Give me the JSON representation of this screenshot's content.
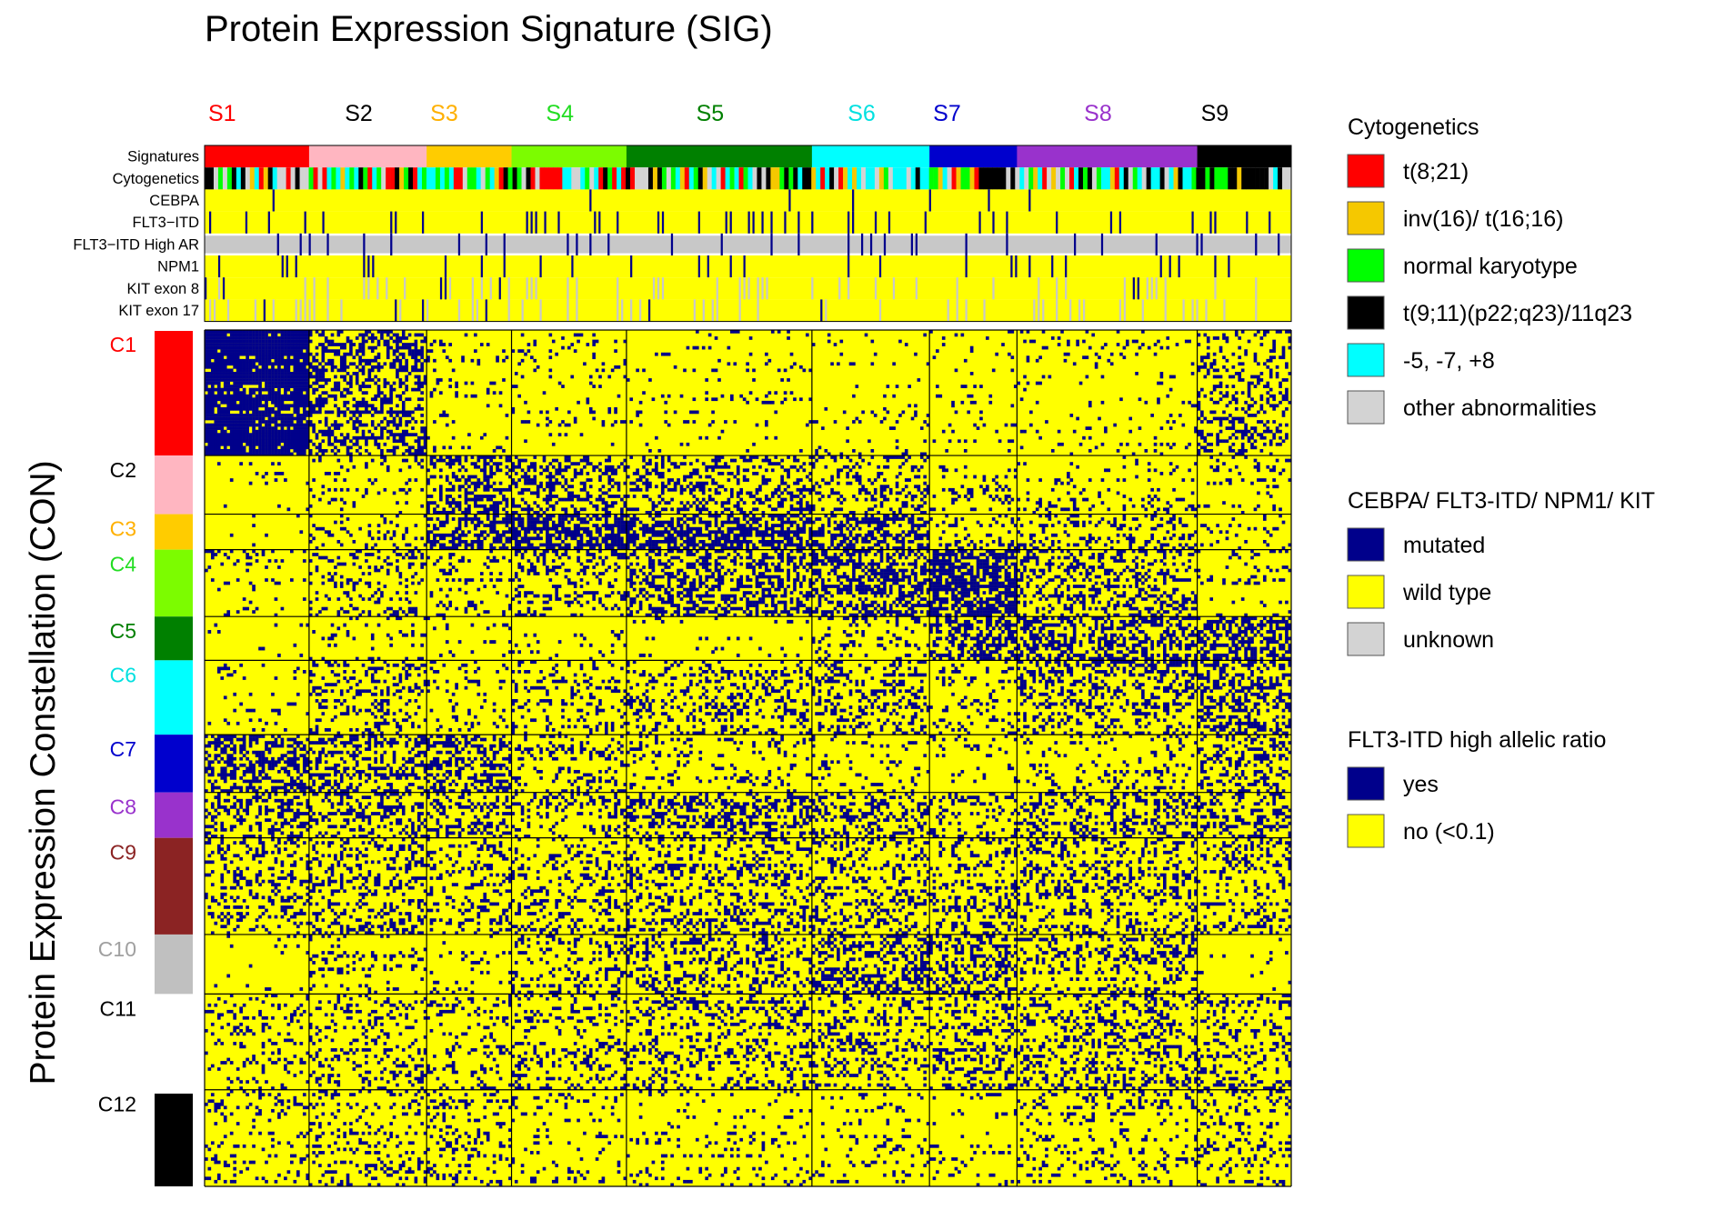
{
  "chart_data": {
    "type": "heatmap",
    "title": "Protein Expression Signature (SIG)",
    "ylabel": "Protein Expression Constellation (CON)",
    "signatures": [
      {
        "label": "S1",
        "color": "#ff0000",
        "weight": 8
      },
      {
        "label": "S2",
        "color": "#ffb6c1",
        "weight": 9
      },
      {
        "label": "S3",
        "color": "#ffcc00",
        "weight": 6.5
      },
      {
        "label": "S4",
        "color": "#7cfc00",
        "weight": 8.8
      },
      {
        "label": "S5",
        "color": "#008000",
        "weight": 14.2
      },
      {
        "label": "S6",
        "color": "#00ffff",
        "weight": 9
      },
      {
        "label": "S7",
        "color": "#0000cd",
        "weight": 6.7
      },
      {
        "label": "S8",
        "color": "#9932cc",
        "weight": 13.8
      },
      {
        "label": "S9",
        "color": "#000000",
        "weight": 7.2
      }
    ],
    "signature_label_colors": [
      "#ff0000",
      "#000000",
      "#ffb000",
      "#22dd22",
      "#008000",
      "#00e0e0",
      "#0000cd",
      "#9932cc",
      "#000000"
    ],
    "annotation_rows": [
      "Signatures",
      "Cytogenetics",
      "CEBPA",
      "FLT3−ITD",
      "FLT3−ITD High AR",
      "NPM1",
      "KIT exon 8",
      "KIT exon 17"
    ],
    "constellations": [
      {
        "label": "C1",
        "color": "#ff0000",
        "label_color": "#ff0000",
        "weight": 15.2,
        "show_bar": true
      },
      {
        "label": "C2",
        "color": "#ffb6c1",
        "label_color": "#000000",
        "weight": 7.1,
        "show_bar": true
      },
      {
        "label": "C3",
        "color": "#ffcc00",
        "label_color": "#ffb000",
        "weight": 4.3,
        "show_bar": true
      },
      {
        "label": "C4",
        "color": "#7cfc00",
        "label_color": "#22dd22",
        "weight": 8.1,
        "show_bar": true
      },
      {
        "label": "C5",
        "color": "#008000",
        "label_color": "#008000",
        "weight": 5.3,
        "show_bar": true
      },
      {
        "label": "C6",
        "color": "#00ffff",
        "label_color": "#00e0e0",
        "weight": 9,
        "show_bar": true
      },
      {
        "label": "C7",
        "color": "#0000cd",
        "label_color": "#0000cd",
        "weight": 7,
        "show_bar": true
      },
      {
        "label": "C8",
        "color": "#9932cc",
        "label_color": "#9932cc",
        "weight": 5.5,
        "show_bar": true
      },
      {
        "label": "C9",
        "color": "#8b2323",
        "label_color": "#8b2323",
        "weight": 11.7,
        "show_bar": true
      },
      {
        "label": "C10",
        "color": "#c0c0c0",
        "label_color": "#a0a0a0",
        "weight": 7.2,
        "show_bar": true
      },
      {
        "label": "C11",
        "color": "#ffffff",
        "label_color": "#000000",
        "weight": 11.6,
        "show_bar": false
      },
      {
        "label": "C12",
        "color": "#000000",
        "label_color": "#000000",
        "weight": 11.7,
        "show_bar": true
      }
    ],
    "cell_colors": {
      "high": "#00008b",
      "low": "#ffff00"
    },
    "density_matrix": [
      [
        0.92,
        0.45,
        0.08,
        0.07,
        0.04,
        0.05,
        0.05,
        0.08,
        0.28
      ],
      [
        0.0,
        0.12,
        0.45,
        0.4,
        0.35,
        0.25,
        0.1,
        0.12,
        0.1
      ],
      [
        0.0,
        0.1,
        0.55,
        0.6,
        0.65,
        0.5,
        0.2,
        0.2,
        0.12
      ],
      [
        0.08,
        0.2,
        0.15,
        0.25,
        0.45,
        0.5,
        0.7,
        0.3,
        0.1
      ],
      [
        0.0,
        0.1,
        0.05,
        0.05,
        0.05,
        0.15,
        0.45,
        0.45,
        0.5
      ],
      [
        0.05,
        0.25,
        0.15,
        0.2,
        0.25,
        0.25,
        0.15,
        0.3,
        0.45
      ],
      [
        0.45,
        0.4,
        0.45,
        0.2,
        0.15,
        0.1,
        0.05,
        0.15,
        0.35
      ],
      [
        0.4,
        0.35,
        0.35,
        0.3,
        0.35,
        0.35,
        0.2,
        0.35,
        0.35
      ],
      [
        0.25,
        0.3,
        0.2,
        0.25,
        0.3,
        0.25,
        0.25,
        0.25,
        0.25
      ],
      [
        0.05,
        0.15,
        0.05,
        0.25,
        0.3,
        0.45,
        0.35,
        0.2,
        0.02
      ],
      [
        0.15,
        0.2,
        0.15,
        0.2,
        0.25,
        0.25,
        0.3,
        0.3,
        0.25
      ],
      [
        0.12,
        0.18,
        0.15,
        0.1,
        0.08,
        0.1,
        0.1,
        0.12,
        0.18
      ]
    ]
  },
  "legend": {
    "groups": [
      {
        "title": "Cytogenetics",
        "items": [
          {
            "label": "t(8;21)",
            "color": "#ff0000"
          },
          {
            "label": "inv(16)/ t(16;16)",
            "color": "#f5c800"
          },
          {
            "label": "normal karyotype",
            "color": "#00ff00"
          },
          {
            "label": "t(9;11)(p22;q23)/11q23",
            "color": "#000000"
          },
          {
            "label": "-5, -7, +8",
            "color": "#00ffff"
          },
          {
            "label": "other abnormalities",
            "color": "#d3d3d3"
          }
        ]
      },
      {
        "title": "CEBPA/ FLT3-ITD/ NPM1/ KIT",
        "items": [
          {
            "label": "mutated",
            "color": "#00008b"
          },
          {
            "label": "wild type",
            "color": "#ffff00"
          },
          {
            "label": "unknown",
            "color": "#d3d3d3"
          }
        ]
      },
      {
        "title": "FLT3-ITD high allelic ratio",
        "items": [
          {
            "label": "yes",
            "color": "#00008b"
          },
          {
            "label": "no (<0.1)",
            "color": "#ffff00"
          }
        ]
      }
    ]
  }
}
